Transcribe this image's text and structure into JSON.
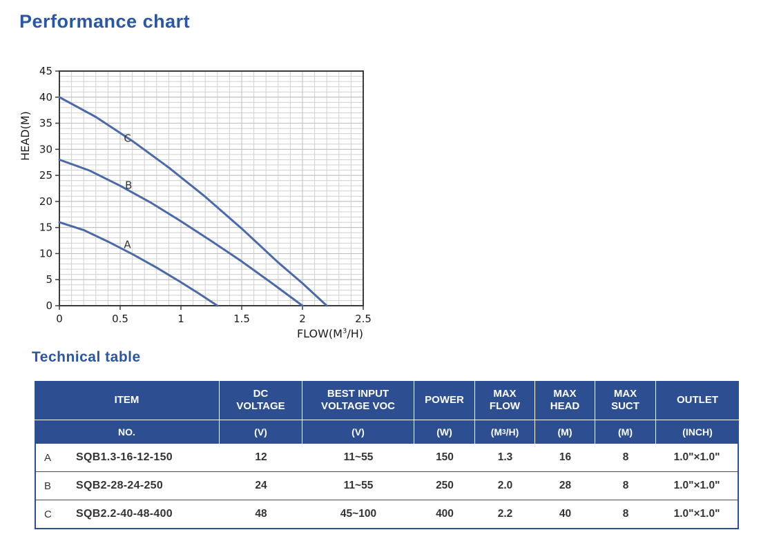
{
  "page": {
    "title": "Performance chart",
    "table_title": "Technical table"
  },
  "chart_data": {
    "type": "line",
    "title": "",
    "xlabel": "FLOW(M³/H)",
    "ylabel": "HEAD(M)",
    "xlim": [
      0,
      2.5
    ],
    "ylim": [
      0,
      45
    ],
    "xticks": [
      0,
      0.5,
      1,
      1.5,
      2,
      2.5
    ],
    "yticks": [
      0,
      5,
      10,
      15,
      20,
      25,
      30,
      35,
      40,
      45
    ],
    "minor_x_step": 0.1,
    "minor_y_step": 1,
    "grid": true,
    "legend_position": "inline-labels",
    "line_color": "#4a69a8",
    "grid_minor_color": "#d0d0d0",
    "grid_major_color": "#bdbdbd",
    "axis_color": "#3a3a3a",
    "series": [
      {
        "name": "A",
        "max_flow": 1.3,
        "max_head": 16,
        "label_pos": [
          0.56,
          11.7
        ],
        "points": [
          [
            0,
            16
          ],
          [
            0.2,
            14.5
          ],
          [
            0.4,
            12.3
          ],
          [
            0.6,
            9.9
          ],
          [
            0.8,
            7.3
          ],
          [
            1.0,
            4.5
          ],
          [
            1.15,
            2.3
          ],
          [
            1.3,
            0
          ]
        ]
      },
      {
        "name": "B",
        "max_flow": 2.0,
        "max_head": 28,
        "label_pos": [
          0.57,
          23.1
        ],
        "points": [
          [
            0,
            28
          ],
          [
            0.25,
            25.9
          ],
          [
            0.5,
            23.0
          ],
          [
            0.75,
            19.8
          ],
          [
            1.0,
            16.2
          ],
          [
            1.25,
            12.4
          ],
          [
            1.5,
            8.5
          ],
          [
            1.75,
            4.3
          ],
          [
            2.0,
            0
          ]
        ]
      },
      {
        "name": "C",
        "max_flow": 2.2,
        "max_head": 40,
        "label_pos": [
          0.56,
          32.1
        ],
        "points": [
          [
            0,
            40
          ],
          [
            0.3,
            36.2
          ],
          [
            0.6,
            31.6
          ],
          [
            0.9,
            26.5
          ],
          [
            1.2,
            20.9
          ],
          [
            1.5,
            14.8
          ],
          [
            1.8,
            8.3
          ],
          [
            2.0,
            4.3
          ],
          [
            2.2,
            0
          ]
        ]
      }
    ]
  },
  "table": {
    "header": [
      {
        "l1": "ITEM",
        "l2": ""
      },
      {
        "l1": "DC",
        "l2": "VOLTAGE"
      },
      {
        "l1": "BEST INPUT",
        "l2": "VOLTAGE VOC"
      },
      {
        "l1": "POWER",
        "l2": ""
      },
      {
        "l1": "MAX",
        "l2": "FLOW"
      },
      {
        "l1": "MAX",
        "l2": "HEAD"
      },
      {
        "l1": "MAX",
        "l2": "SUCT"
      },
      {
        "l1": "OUTLET",
        "l2": ""
      }
    ],
    "units": [
      "NO.",
      "(V)",
      "(V)",
      "(W)",
      "(M³/H)",
      "(M)",
      "(M)",
      "(INCH)"
    ],
    "rows": [
      {
        "letter": "A",
        "model": "SQB1.3-16-12-150",
        "dc": "12",
        "best": "11~55",
        "power": "150",
        "flow": "1.3",
        "head": "16",
        "suct": "8",
        "outlet": "1.0\"×1.0\""
      },
      {
        "letter": "B",
        "model": "SQB2-28-24-250",
        "dc": "24",
        "best": "11~55",
        "power": "250",
        "flow": "2.0",
        "head": "28",
        "suct": "8",
        "outlet": "1.0\"×1.0\""
      },
      {
        "letter": "C",
        "model": "SQB2.2-40-48-400",
        "dc": "48",
        "best": "45~100",
        "power": "400",
        "flow": "2.2",
        "head": "40",
        "suct": "8",
        "outlet": "1.0\"×1.0\""
      }
    ]
  }
}
